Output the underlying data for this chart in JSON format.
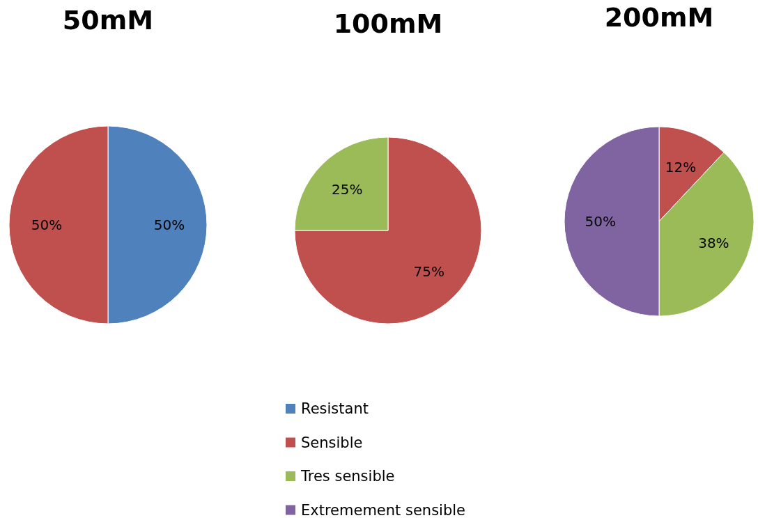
{
  "chart_data": [
    {
      "type": "pie",
      "title": "50mM",
      "values": [
        50,
        50
      ],
      "value_labels": [
        "50%",
        "50%"
      ],
      "colors": [
        "#4f81bd",
        "#c0504d"
      ]
    },
    {
      "type": "pie",
      "title": "100mM",
      "categories": [
        "Resistant",
        "Sensible",
        "Tres sensible",
        "Extremement sensible"
      ],
      "values": [
        0,
        75,
        25,
        0
      ],
      "value_labels": [
        null,
        "75%",
        "25%",
        null
      ],
      "colors": [
        "#4f81bd",
        "#c0504d",
        "#9bbb59",
        "#8064a2"
      ],
      "legend": "bottom"
    },
    {
      "type": "pie",
      "title": "200mM",
      "values": [
        12,
        38,
        50
      ],
      "value_labels": [
        "12%",
        "38%",
        "50%"
      ],
      "colors": [
        "#c0504d",
        "#9bbb59",
        "#8064a2"
      ]
    }
  ]
}
